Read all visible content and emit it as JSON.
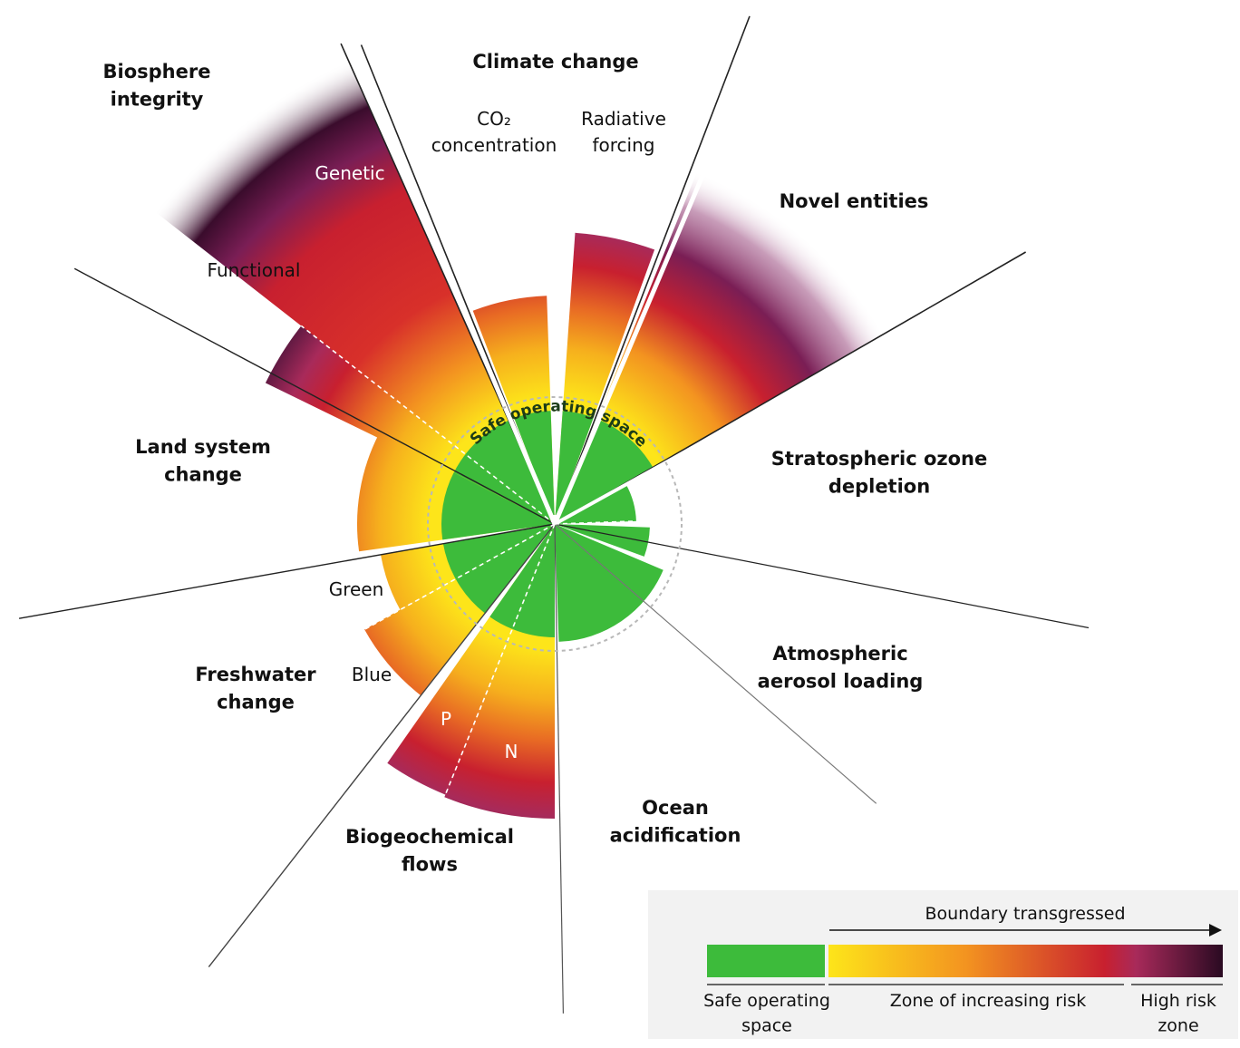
{
  "center_label": "Safe operating space",
  "colors": {
    "safe": "#3dbb3b",
    "risk_start": "#fde51a",
    "risk_mid": "#f08a24",
    "risk_end": "#c8202f",
    "high_start": "#a32d6a",
    "high_end": "#2a0a22"
  },
  "boundaries": {
    "climate_change": "Climate change",
    "co2": "CO₂\nconcentration",
    "radiative": "Radiative\nforcing",
    "novel": "Novel entities",
    "ozone": "Stratospheric ozone\ndepletion",
    "aerosol": "Atmospheric\naerosol loading",
    "ocean": "Ocean\nacidification",
    "biogeo": "Biogeochemical\nflows",
    "p": "P",
    "n": "N",
    "freshwater": "Freshwater\nchange",
    "blue": "Blue",
    "green": "Green",
    "land": "Land system\nchange",
    "functional": "Functional",
    "biosphere": "Biosphere\nintegrity",
    "genetic": "Genetic"
  },
  "legend": {
    "arrow_label": "Boundary transgressed",
    "safe": "Safe operating\nspace",
    "zone": "Zone of increasing risk",
    "high": "High risk\nzone"
  }
}
